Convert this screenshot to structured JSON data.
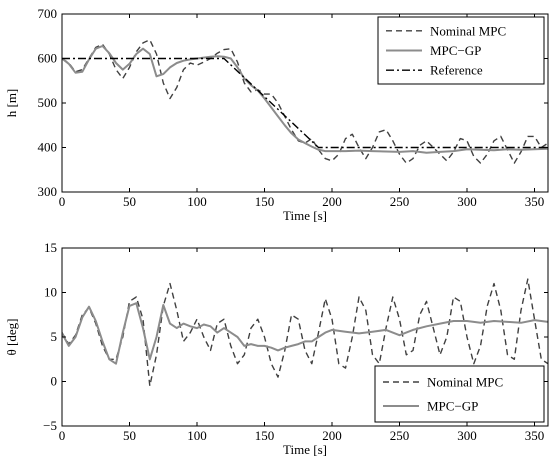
{
  "chart_data": [
    {
      "type": "line",
      "title": "",
      "xlabel": "Time [s]",
      "ylabel": "h [m]",
      "xlim": [
        0,
        360
      ],
      "ylim": [
        300,
        700
      ],
      "xticks": [
        0,
        50,
        100,
        150,
        200,
        250,
        300,
        350
      ],
      "yticks": [
        300,
        400,
        500,
        600,
        700
      ],
      "grid": false,
      "legend_position": "top-right",
      "series": [
        {
          "name": "Nominal MPC",
          "style": "dashed",
          "color": "#404040",
          "x": [
            0,
            5,
            10,
            15,
            20,
            25,
            30,
            35,
            40,
            45,
            50,
            55,
            60,
            65,
            70,
            75,
            80,
            85,
            90,
            95,
            100,
            105,
            110,
            115,
            120,
            125,
            130,
            135,
            140,
            145,
            150,
            155,
            160,
            165,
            170,
            175,
            180,
            185,
            190,
            195,
            200,
            205,
            210,
            215,
            220,
            225,
            230,
            235,
            240,
            245,
            250,
            255,
            260,
            265,
            270,
            275,
            280,
            285,
            290,
            295,
            300,
            305,
            310,
            315,
            320,
            325,
            330,
            335,
            340,
            345,
            350,
            355,
            360
          ],
          "y": [
            600,
            590,
            570,
            575,
            600,
            625,
            632,
            610,
            575,
            555,
            580,
            615,
            635,
            642,
            610,
            545,
            510,
            535,
            575,
            590,
            585,
            592,
            600,
            612,
            620,
            622,
            592,
            545,
            525,
            530,
            520,
            520,
            500,
            470,
            440,
            415,
            410,
            420,
            395,
            375,
            370,
            385,
            420,
            430,
            400,
            375,
            400,
            435,
            440,
            415,
            385,
            365,
            375,
            405,
            415,
            400,
            385,
            370,
            390,
            420,
            415,
            380,
            365,
            385,
            415,
            425,
            395,
            365,
            390,
            425,
            425,
            400,
            410
          ]
        },
        {
          "name": "MPC−GP",
          "style": "solid",
          "color": "#8c8c8c",
          "x": [
            0,
            5,
            10,
            15,
            20,
            25,
            30,
            35,
            40,
            45,
            50,
            55,
            60,
            65,
            70,
            75,
            80,
            85,
            90,
            95,
            100,
            105,
            110,
            115,
            120,
            125,
            130,
            135,
            140,
            145,
            150,
            155,
            160,
            165,
            170,
            175,
            180,
            185,
            190,
            195,
            200,
            210,
            220,
            230,
            240,
            250,
            260,
            270,
            280,
            290,
            300,
            310,
            320,
            330,
            340,
            350,
            360
          ],
          "y": [
            600,
            588,
            568,
            570,
            598,
            622,
            628,
            612,
            590,
            575,
            588,
            610,
            622,
            610,
            560,
            565,
            580,
            590,
            595,
            598,
            600,
            602,
            604,
            605,
            604,
            600,
            580,
            555,
            540,
            528,
            510,
            490,
            470,
            450,
            432,
            418,
            410,
            402,
            395,
            392,
            392,
            392,
            393,
            392,
            391,
            390,
            392,
            388,
            390,
            392,
            396,
            395,
            394,
            396,
            395,
            396,
            397
          ]
        },
        {
          "name": "Reference",
          "style": "dashdot",
          "color": "#000000",
          "x": [
            0,
            120,
            190,
            360
          ],
          "y": [
            600,
            600,
            400,
            400
          ]
        }
      ]
    },
    {
      "type": "line",
      "title": "",
      "xlabel": "Time [s]",
      "ylabel": "θ [deg]",
      "xlim": [
        0,
        360
      ],
      "ylim": [
        -5,
        15
      ],
      "xticks": [
        0,
        50,
        100,
        150,
        200,
        250,
        300,
        350
      ],
      "yticks": [
        -5,
        0,
        5,
        10,
        15
      ],
      "grid": false,
      "legend_position": "bottom-right",
      "series": [
        {
          "name": "Nominal MPC",
          "style": "dashed",
          "color": "#404040",
          "x": [
            0,
            5,
            10,
            15,
            20,
            25,
            30,
            35,
            40,
            45,
            50,
            55,
            60,
            65,
            70,
            75,
            80,
            85,
            90,
            95,
            100,
            105,
            110,
            115,
            120,
            125,
            130,
            135,
            140,
            145,
            150,
            155,
            160,
            165,
            170,
            175,
            180,
            185,
            190,
            195,
            200,
            205,
            210,
            215,
            220,
            225,
            230,
            235,
            240,
            245,
            250,
            255,
            260,
            265,
            270,
            275,
            280,
            285,
            290,
            295,
            300,
            305,
            310,
            315,
            320,
            325,
            330,
            335,
            340,
            345,
            350,
            355,
            360
          ],
          "y": [
            5.5,
            4.2,
            5.2,
            7.5,
            8.3,
            6.5,
            4.0,
            2.5,
            2.5,
            5.0,
            9.0,
            9.5,
            7.0,
            -0.5,
            3.0,
            8.5,
            11.0,
            8.0,
            4.5,
            5.5,
            7.0,
            5.0,
            3.5,
            6.5,
            7.0,
            4.0,
            2.0,
            3.0,
            6.0,
            7.0,
            5.0,
            2.0,
            0.5,
            3.5,
            7.5,
            7.0,
            3.5,
            2.0,
            5.5,
            9.3,
            7.0,
            2.0,
            1.5,
            5.0,
            9.5,
            8.0,
            3.0,
            2.0,
            6.0,
            9.5,
            7.0,
            3.0,
            3.5,
            7.5,
            9.0,
            6.0,
            3.0,
            5.0,
            9.5,
            9.0,
            5.0,
            2.0,
            4.0,
            8.5,
            11.0,
            8.0,
            3.0,
            2.5,
            8.0,
            11.5,
            7.0,
            2.5,
            2.0
          ]
        },
        {
          "name": "MPC−GP",
          "style": "solid",
          "color": "#8c8c8c",
          "x": [
            0,
            5,
            10,
            15,
            20,
            25,
            30,
            35,
            40,
            45,
            50,
            55,
            60,
            65,
            70,
            75,
            80,
            85,
            90,
            95,
            100,
            105,
            110,
            115,
            120,
            125,
            130,
            135,
            140,
            145,
            150,
            155,
            160,
            165,
            170,
            175,
            180,
            185,
            190,
            195,
            200,
            210,
            220,
            230,
            240,
            250,
            260,
            270,
            280,
            290,
            300,
            310,
            320,
            330,
            340,
            350,
            360
          ],
          "y": [
            5.4,
            4.0,
            5.0,
            7.2,
            8.4,
            6.8,
            4.5,
            2.5,
            2.0,
            5.5,
            8.5,
            8.8,
            6.0,
            2.5,
            5.0,
            8.6,
            6.5,
            6.0,
            6.5,
            6.2,
            6.0,
            6.4,
            6.2,
            5.5,
            6.0,
            5.5,
            5.0,
            4.0,
            4.2,
            4.0,
            4.0,
            3.8,
            3.5,
            3.8,
            4.0,
            4.2,
            4.5,
            4.5,
            5.0,
            5.5,
            5.8,
            5.6,
            5.4,
            5.6,
            5.8,
            5.2,
            5.8,
            6.2,
            6.5,
            6.8,
            6.8,
            6.6,
            6.8,
            6.7,
            6.6,
            6.9,
            6.7
          ]
        }
      ]
    }
  ]
}
